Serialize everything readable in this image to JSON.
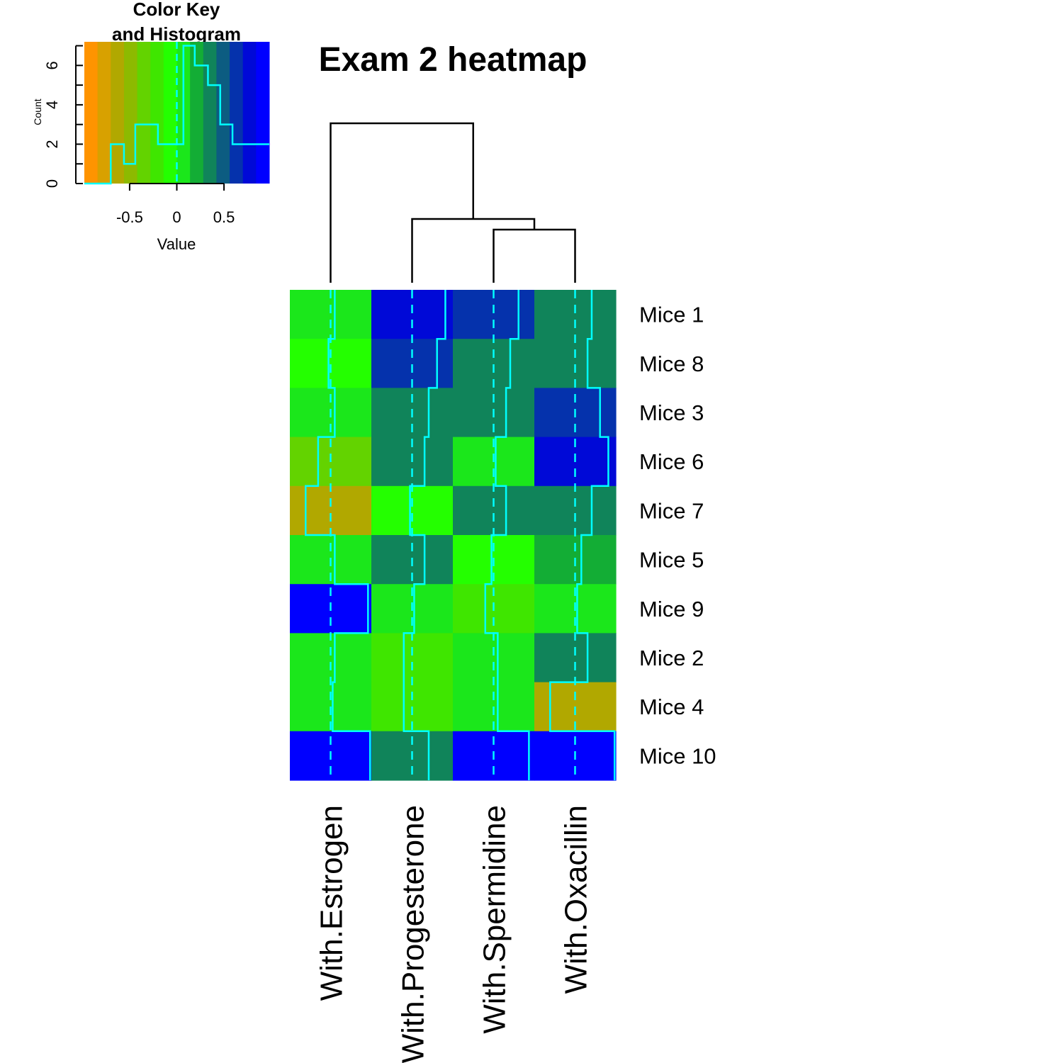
{
  "chart_data": {
    "type": "heatmap",
    "title": "Exam 2 heatmap",
    "rows": [
      "Mice 1",
      "Mice 8",
      "Mice 3",
      "Mice 6",
      "Mice 7",
      "Mice 5",
      "Mice 9",
      "Mice 2",
      "Mice 4",
      "Mice 10"
    ],
    "columns": [
      "With.Estrogen",
      "With.Progesterone",
      "With.Spermidine",
      "With.Oxacillin"
    ],
    "values": [
      [
        0.1,
        0.8,
        0.6,
        0.4
      ],
      [
        -0.05,
        0.6,
        0.4,
        0.3
      ],
      [
        0.1,
        0.4,
        0.3,
        0.6
      ],
      [
        -0.3,
        0.3,
        0.05,
        0.8
      ],
      [
        -0.6,
        -0.05,
        0.3,
        0.4
      ],
      [
        0.1,
        0.3,
        -0.05,
        0.15
      ],
      [
        0.9,
        0.05,
        -0.2,
        0.05
      ],
      [
        0.1,
        -0.2,
        0.1,
        0.3
      ],
      [
        0.05,
        -0.2,
        0.1,
        -0.6
      ],
      [
        0.95,
        0.4,
        0.85,
        0.95
      ]
    ],
    "trace_color": "#00ffff",
    "colormap": [
      "#ff9400",
      "#d8a100",
      "#b1a800",
      "#8dba00",
      "#63d300",
      "#3fe600",
      "#24ff00",
      "#1be71b",
      "#13ad35",
      "#10845a",
      "#0c5c81",
      "#0532ac",
      "#0009d7",
      "#0000ff"
    ],
    "color_key": {
      "title": "Color Key\nand Histogram",
      "xlabel": "Value",
      "ylabel": "Count",
      "x_ticks": [
        "-0.5",
        "0",
        "0.5"
      ],
      "y_ticks": [
        "0",
        "2",
        "4",
        "6"
      ],
      "xlim": [
        -0.98,
        0.98
      ],
      "ylim": [
        0,
        7.2
      ],
      "histogram": [
        {
          "x0": -0.98,
          "x1": -0.7,
          "count": 0
        },
        {
          "x0": -0.7,
          "x1": -0.56,
          "count": 2
        },
        {
          "x0": -0.56,
          "x1": -0.44,
          "count": 1
        },
        {
          "x0": -0.44,
          "x1": -0.2,
          "count": 3
        },
        {
          "x0": -0.2,
          "x1": 0.07,
          "count": 2
        },
        {
          "x0": 0.07,
          "x1": 0.19,
          "count": 7
        },
        {
          "x0": 0.19,
          "x1": 0.33,
          "count": 6
        },
        {
          "x0": 0.33,
          "x1": 0.46,
          "count": 5
        },
        {
          "x0": 0.46,
          "x1": 0.59,
          "count": 3
        },
        {
          "x0": 0.59,
          "x1": 0.98,
          "count": 2
        }
      ]
    },
    "column_dendrogram": [
      {
        "left": "With.Spermidine",
        "right": "With.Oxacillin",
        "height": 1.0
      },
      {
        "left": "With.Progesterone",
        "right": "(With.Spermidine, With.Oxacillin)",
        "height": 1.2
      },
      {
        "left": "With.Estrogen",
        "right": "(With.Progesterone, With.Spermidine, With.Oxacillin)",
        "height": 3.0
      }
    ]
  }
}
